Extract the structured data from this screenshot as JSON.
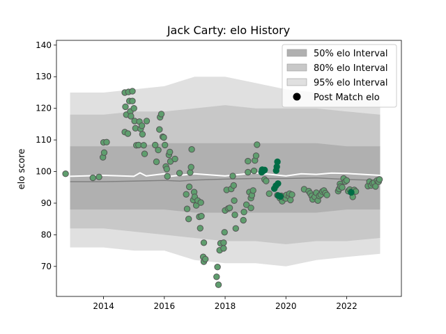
{
  "chart_data": {
    "type": "scatter",
    "title": "Jack Carty: elo History",
    "xlabel": "",
    "ylabel": "elo score",
    "xlim": [
      2012.45,
      2023.8
    ],
    "ylim": [
      60.5,
      141.5
    ],
    "x_ticks": [
      2014,
      2016,
      2018,
      2020,
      2022
    ],
    "y_ticks": [
      70,
      80,
      90,
      100,
      110,
      120,
      130,
      140
    ],
    "grid": false,
    "legend_position": "top-right",
    "legend": [
      {
        "label": "50% elo Interval",
        "kind": "patch",
        "color": "#b0b0b0"
      },
      {
        "label": "80% elo Interval",
        "kind": "patch",
        "color": "#c8c8c8"
      },
      {
        "label": "95% elo Interval",
        "kind": "patch",
        "color": "#e0e0e0"
      },
      {
        "label": "Post Match elo",
        "kind": "marker",
        "color": "#000000"
      }
    ],
    "colors": {
      "band_50": "#b0b0b0",
      "band_80": "#c8c8c8",
      "band_95": "#e0e0e0",
      "median_line": "#808080",
      "mean_line": "#ffffff",
      "point_fill": "#5f9e6e",
      "point_edge": "#555555",
      "recent_point_fill": "#006c45"
    },
    "bands": {
      "x": [
        2012.9,
        2014.0,
        2015.0,
        2016.0,
        2017.0,
        2018.0,
        2019.0,
        2020.0,
        2021.0,
        2022.0,
        2023.1
      ],
      "p95_low": [
        76,
        76,
        75,
        75,
        72,
        71,
        71,
        70,
        72,
        73,
        74
      ],
      "p95_high": [
        125,
        125,
        126,
        127,
        130,
        130,
        128,
        126,
        125,
        124,
        124
      ],
      "p80_low": [
        82,
        82,
        81,
        80,
        79,
        78,
        78,
        77,
        78,
        78,
        79
      ],
      "p80_high": [
        118,
        118,
        119,
        119,
        120,
        121,
        120,
        120,
        120,
        119,
        118
      ],
      "p50_low": [
        88,
        88,
        88,
        88,
        87,
        87,
        87,
        87,
        87,
        88,
        88
      ],
      "p50_high": [
        108,
        108,
        108,
        109,
        109,
        109,
        109,
        109,
        109,
        108,
        108
      ]
    },
    "median_line": {
      "x": [
        2012.9,
        2014.0,
        2015.0,
        2016.0,
        2016.5,
        2017.0,
        2018.0,
        2019.0,
        2020.0,
        2021.0,
        2022.0,
        2023.1
      ],
      "y": [
        96.8,
        96.8,
        97.0,
        97.2,
        97.0,
        97.3,
        97.6,
        97.8,
        97.8,
        98.0,
        97.5,
        97.2
      ]
    },
    "mean_line": {
      "x": [
        2012.9,
        2014.0,
        2015.0,
        2015.2,
        2015.4,
        2016.0,
        2016.2,
        2017.0,
        2018.0,
        2019.0,
        2020.0,
        2020.5,
        2021.0,
        2021.5,
        2022.0,
        2023.1
      ],
      "y": [
        98.5,
        98.8,
        98.5,
        99.6,
        98.6,
        99.3,
        98.5,
        99.3,
        98.6,
        99.6,
        98.6,
        99.3,
        99.1,
        99.5,
        99.4,
        98.8
      ]
    },
    "points": [
      [
        2012.75,
        99.3
      ],
      [
        2013.65,
        98.0
      ],
      [
        2013.85,
        98.3
      ],
      [
        2013.98,
        104.5
      ],
      [
        2014.02,
        106.0
      ],
      [
        2014.0,
        109.2
      ],
      [
        2014.1,
        109.3
      ],
      [
        2014.7,
        112.5
      ],
      [
        2014.8,
        112.0
      ],
      [
        2014.75,
        118.0
      ],
      [
        2014.72,
        120.5
      ],
      [
        2014.7,
        125.0
      ],
      [
        2014.82,
        125.2
      ],
      [
        2014.85,
        122.3
      ],
      [
        2014.88,
        119.0
      ],
      [
        2014.9,
        117.5
      ],
      [
        2014.95,
        125.4
      ],
      [
        2014.95,
        122.3
      ],
      [
        2015.0,
        120.0
      ],
      [
        2015.02,
        116.0
      ],
      [
        2015.05,
        113.7
      ],
      [
        2015.08,
        108.3
      ],
      [
        2015.15,
        108.4
      ],
      [
        2015.18,
        115.8
      ],
      [
        2015.22,
        113.5
      ],
      [
        2015.26,
        114.5
      ],
      [
        2015.28,
        111.8
      ],
      [
        2015.32,
        108.3
      ],
      [
        2015.35,
        105.6
      ],
      [
        2015.42,
        116.0
      ],
      [
        2015.7,
        108.4
      ],
      [
        2015.74,
        103.1
      ],
      [
        2015.8,
        106.8
      ],
      [
        2015.84,
        113.3
      ],
      [
        2015.86,
        117.2
      ],
      [
        2015.9,
        118.2
      ],
      [
        2015.95,
        111.0
      ],
      [
        2015.98,
        110.8
      ],
      [
        2016.02,
        108.4
      ],
      [
        2016.05,
        101.6
      ],
      [
        2016.08,
        100.8
      ],
      [
        2016.1,
        98.5
      ],
      [
        2016.15,
        105.3
      ],
      [
        2016.18,
        106.2
      ],
      [
        2016.2,
        103.2
      ],
      [
        2016.35,
        104.0
      ],
      [
        2016.5,
        99.5
      ],
      [
        2016.72,
        92.8
      ],
      [
        2016.75,
        88.2
      ],
      [
        2016.8,
        85.0
      ],
      [
        2016.82,
        95.2
      ],
      [
        2016.85,
        99.7
      ],
      [
        2016.88,
        101.4
      ],
      [
        2016.9,
        107.0
      ],
      [
        2016.95,
        91.0
      ],
      [
        2016.98,
        93.5
      ],
      [
        2017.0,
        92.0
      ],
      [
        2017.05,
        89.3
      ],
      [
        2017.1,
        90.8
      ],
      [
        2017.15,
        85.7
      ],
      [
        2017.18,
        82.1
      ],
      [
        2017.22,
        85.9
      ],
      [
        2017.2,
        90.2
      ],
      [
        2017.3,
        77.5
      ],
      [
        2017.28,
        73.0
      ],
      [
        2017.3,
        71.5
      ],
      [
        2017.35,
        72.3
      ],
      [
        2017.72,
        66.7
      ],
      [
        2017.75,
        69.8
      ],
      [
        2017.78,
        64.2
      ],
      [
        2017.82,
        75.1
      ],
      [
        2017.85,
        77.3
      ],
      [
        2017.95,
        77.5
      ],
      [
        2017.95,
        75.7
      ],
      [
        2017.98,
        80.8
      ],
      [
        2018.0,
        87.7
      ],
      [
        2018.05,
        94.2
      ],
      [
        2018.1,
        88.3
      ],
      [
        2018.15,
        88.5
      ],
      [
        2018.2,
        94.5
      ],
      [
        2018.25,
        98.6
      ],
      [
        2018.28,
        95.6
      ],
      [
        2018.3,
        90.8
      ],
      [
        2018.32,
        86.3
      ],
      [
        2018.35,
        82.0
      ],
      [
        2018.6,
        84.6
      ],
      [
        2018.62,
        87.2
      ],
      [
        2018.7,
        89.5
      ],
      [
        2018.75,
        99.8
      ],
      [
        2018.75,
        103.3
      ],
      [
        2018.8,
        93.5
      ],
      [
        2018.85,
        88.5
      ],
      [
        2018.85,
        91.6
      ],
      [
        2018.88,
        92.5
      ],
      [
        2018.92,
        94.0
      ],
      [
        2018.95,
        100.2
      ],
      [
        2018.98,
        103.5
      ],
      [
        2019.02,
        105.0
      ],
      [
        2019.05,
        108.5
      ],
      [
        2019.3,
        97.5
      ],
      [
        2019.35,
        97.0
      ],
      [
        2019.45,
        93.0
      ],
      [
        2019.72,
        92.5
      ],
      [
        2019.8,
        91.6
      ],
      [
        2019.85,
        92.3
      ],
      [
        2019.88,
        90.6
      ],
      [
        2019.95,
        91.7
      ],
      [
        2020.0,
        91.5
      ],
      [
        2020.02,
        92.6
      ],
      [
        2020.1,
        92.2
      ],
      [
        2020.12,
        93.0
      ],
      [
        2020.15,
        91.0
      ],
      [
        2020.2,
        92.7
      ],
      [
        2020.6,
        94.4
      ],
      [
        2020.75,
        93.8
      ],
      [
        2020.8,
        93.1
      ],
      [
        2020.85,
        92.3
      ],
      [
        2020.88,
        91.2
      ],
      [
        2020.95,
        92.0
      ],
      [
        2021.0,
        93.3
      ],
      [
        2021.05,
        90.8
      ],
      [
        2021.1,
        92.3
      ],
      [
        2021.15,
        92.7
      ],
      [
        2021.2,
        93.7
      ],
      [
        2021.25,
        94.0
      ],
      [
        2021.3,
        93.2
      ],
      [
        2021.35,
        92.6
      ],
      [
        2021.72,
        93.8
      ],
      [
        2021.75,
        94.5
      ],
      [
        2021.78,
        96.1
      ],
      [
        2021.8,
        95.3
      ],
      [
        2021.85,
        95.0
      ],
      [
        2021.9,
        97.8
      ],
      [
        2021.95,
        96.8
      ],
      [
        2022.0,
        97.2
      ],
      [
        2022.05,
        93.8
      ],
      [
        2022.1,
        94.3
      ],
      [
        2022.15,
        93.6
      ],
      [
        2022.2,
        92.0
      ],
      [
        2022.25,
        94.2
      ],
      [
        2022.3,
        93.7
      ],
      [
        2022.7,
        95.4
      ],
      [
        2022.75,
        96.8
      ],
      [
        2022.8,
        95.6
      ],
      [
        2022.85,
        96.3
      ],
      [
        2022.9,
        96.5
      ],
      [
        2022.95,
        95.3
      ],
      [
        2023.0,
        97.2
      ],
      [
        2023.05,
        96.8
      ],
      [
        2023.08,
        97.5
      ]
    ],
    "recent_points": [
      [
        2019.2,
        99.8
      ],
      [
        2019.22,
        100.6
      ],
      [
        2019.26,
        100.2
      ],
      [
        2019.3,
        100.5
      ],
      [
        2019.62,
        94.6
      ],
      [
        2019.67,
        95.5
      ],
      [
        2019.68,
        100.3
      ],
      [
        2019.7,
        101.5
      ],
      [
        2019.72,
        103.1
      ],
      [
        2019.74,
        96.2
      ],
      [
        2019.75,
        92.4
      ],
      [
        2019.82,
        92.1
      ],
      [
        2022.15,
        93.4
      ]
    ]
  }
}
